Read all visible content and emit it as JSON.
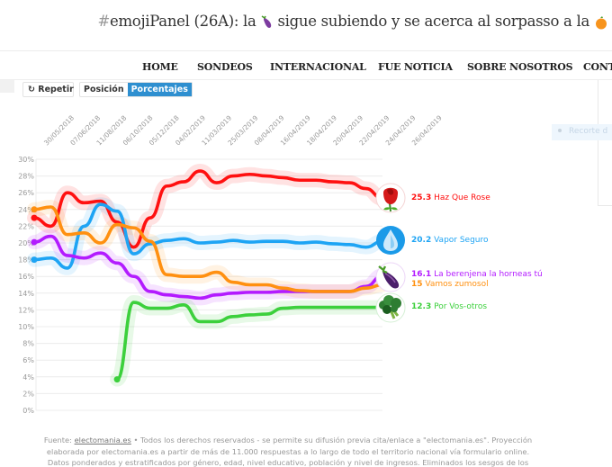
{
  "header": {
    "title_hash": "#",
    "title_pre": "emojiPanel (26A): la",
    "title_emoji1": "eggplant",
    "title_mid": "sigue subiendo y se acerca al sorpasso a la",
    "title_emoji2": "orange"
  },
  "nav": {
    "items": [
      "HOME",
      "SONDEOS",
      "INTERNACIONAL",
      "FUE NOTICIA",
      "SOBRE NOSOTROS",
      "CONT"
    ]
  },
  "controls": {
    "repeat_icon": "↻",
    "repeat_label": "Repetir",
    "mode_position": "Posición",
    "mode_percent": "Porcentajes",
    "active_mode": "Porcentajes"
  },
  "sidebar": {
    "recorte_label": "Recorte d"
  },
  "colors": {
    "red": "#ff1010",
    "blue": "#1ea4f4",
    "purple": "#b31bff",
    "orange": "#ff9010",
    "green": "#3cd03c",
    "accent": "#2e8fd0"
  },
  "chart_data": {
    "type": "line",
    "title": "",
    "xlabel": "",
    "ylabel": "",
    "ylim": [
      0,
      30
    ],
    "yticks": [
      "0%",
      "2%",
      "4%",
      "6%",
      "8%",
      "10%",
      "12%",
      "14%",
      "16%",
      "18%",
      "20%",
      "22%",
      "24%",
      "26%",
      "28%",
      "30%"
    ],
    "grid": true,
    "x_tick_labels": [
      "30/05/2018",
      "07/06/2018",
      "11/08/2018",
      "06/10/2018",
      "05/12/2018",
      "04/02/2019",
      "11/03/2019",
      "25/03/2019",
      "08/04/2019",
      "16/04/2019",
      "18/04/2019",
      "20/04/2019",
      "22/04/2019",
      "24/04/2019",
      "26/04/2019"
    ],
    "x_points": 22,
    "series": [
      {
        "name": "Haz Que Rose",
        "emoji": "rose",
        "color": "#ff1010",
        "final": "25.3",
        "values": [
          23.0,
          22.0,
          26.0,
          24.8,
          25.0,
          22.5,
          19.5,
          23.0,
          26.8,
          27.3,
          28.6,
          27.2,
          28.0,
          28.2,
          28.0,
          27.8,
          27.5,
          27.5,
          27.3,
          27.2,
          26.5,
          25.3
        ]
      },
      {
        "name": "Vapor Seguro",
        "emoji": "droplet",
        "color": "#1ea4f4",
        "final": "20.2",
        "values": [
          18.0,
          18.2,
          17.0,
          22.0,
          24.6,
          23.8,
          18.7,
          19.9,
          20.3,
          20.5,
          20.0,
          20.1,
          20.3,
          20.1,
          20.2,
          20.2,
          20.0,
          20.1,
          19.9,
          19.8,
          19.5,
          20.2
        ]
      },
      {
        "name": "La berenjena la horneas tú",
        "emoji": "eggplant",
        "color": "#b31bff",
        "final": "16.1",
        "values": [
          20.1,
          20.8,
          18.5,
          18.2,
          18.8,
          17.6,
          16.0,
          14.2,
          13.8,
          13.6,
          13.4,
          13.8,
          14.0,
          14.1,
          14.1,
          14.2,
          14.2,
          14.2,
          14.2,
          14.2,
          14.8,
          16.1
        ]
      },
      {
        "name": "Vamos zumosol",
        "emoji": "orange",
        "color": "#ff9010",
        "final": "15",
        "values": [
          24.0,
          24.3,
          21.0,
          21.2,
          20.0,
          22.2,
          21.8,
          20.2,
          16.2,
          16.0,
          16.0,
          16.5,
          15.3,
          15.0,
          15.0,
          14.6,
          14.3,
          14.2,
          14.2,
          14.2,
          14.6,
          15.0
        ]
      },
      {
        "name": "Por Vos-otros",
        "emoji": "broccoli",
        "color": "#3cd03c",
        "final": "12.3",
        "values": [
          null,
          null,
          null,
          null,
          null,
          3.7,
          12.9,
          12.2,
          12.2,
          12.6,
          10.6,
          10.6,
          11.2,
          11.4,
          11.5,
          12.2,
          12.3,
          12.3,
          12.3,
          12.3,
          12.3,
          12.3
        ]
      }
    ],
    "legend": [
      {
        "value": "25.3",
        "label": "Haz Que Rose"
      },
      {
        "value": "20.2",
        "label": "Vapor Seguro"
      },
      {
        "value": "16.1",
        "label": "La berenjena la horneas tú"
      },
      {
        "value": "15",
        "label": "Vamos zumosol"
      },
      {
        "value": "12.3",
        "label": "Por Vos-otros"
      }
    ]
  },
  "footer": {
    "source_prefix": "Fuente: ",
    "source_link": "electomania.es",
    "line1_rest": " • Todos los derechos reservados - se permite su difusión previa cita/enlace a \"electomania.es\". Proyección",
    "line2": "elaborada por electomania.es a partir de más de 11.000 respuestas a lo largo de todo el territorio nacional vía formulario online.",
    "line3": "Datos ponderados y estratificados por género, edad, nivel educativo, población y nivel de ingresos. Eliminados los sesgos de los"
  }
}
